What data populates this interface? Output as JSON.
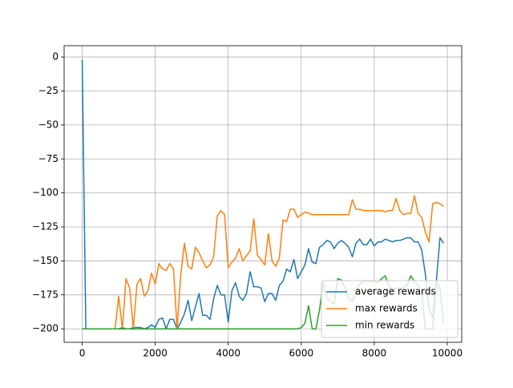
{
  "chart_data": {
    "type": "line",
    "x": [
      0,
      100,
      200,
      300,
      400,
      500,
      600,
      700,
      800,
      900,
      1000,
      1100,
      1200,
      1300,
      1400,
      1500,
      1600,
      1700,
      1800,
      1900,
      2000,
      2100,
      2200,
      2300,
      2400,
      2500,
      2600,
      2700,
      2800,
      2900,
      3000,
      3100,
      3200,
      3300,
      3400,
      3500,
      3600,
      3700,
      3800,
      3900,
      4000,
      4100,
      4200,
      4300,
      4400,
      4500,
      4600,
      4700,
      4800,
      4900,
      5000,
      5100,
      5200,
      5300,
      5400,
      5500,
      5600,
      5700,
      5800,
      5900,
      6000,
      6100,
      6200,
      6300,
      6400,
      6500,
      6600,
      6700,
      6800,
      6900,
      7000,
      7100,
      7200,
      7300,
      7400,
      7500,
      7600,
      7700,
      7800,
      7900,
      8000,
      8100,
      8200,
      8300,
      8400,
      8500,
      8600,
      8700,
      8800,
      8900,
      9000,
      9100,
      9200,
      9300,
      9400,
      9500,
      9600,
      9700,
      9800,
      9900
    ],
    "series": [
      {
        "name": "average rewards",
        "color": "#1f77b4",
        "values": [
          -2,
          -200,
          -200,
          -200,
          -200,
          -200,
          -200,
          -200,
          -200,
          -200,
          -200,
          -199,
          -200,
          -200,
          -199,
          -199,
          -199,
          -200,
          -199,
          -197,
          -199,
          -193,
          -192,
          -200,
          -193,
          -193,
          -200,
          -195,
          -189,
          -179,
          -194,
          -184,
          -174,
          -190,
          -190,
          -193,
          -178,
          -168,
          -175,
          -175,
          -195,
          -172,
          -166,
          -176,
          -179,
          -174,
          -158,
          -169,
          -169,
          -170,
          -180,
          -174,
          -174,
          -179,
          -168,
          -165,
          -156,
          -158,
          -149,
          -163,
          -158,
          -153,
          -141,
          -151,
          -152,
          -140,
          -138,
          -135,
          -136,
          -141,
          -137,
          -135,
          -137,
          -140,
          -147,
          -137,
          -134,
          -138,
          -138,
          -134,
          -139,
          -136,
          -136,
          -134,
          -135,
          -136,
          -135,
          -135,
          -134,
          -133,
          -133,
          -136,
          -136,
          -142,
          -160,
          -185,
          -192,
          -165,
          -133,
          -137
        ]
      },
      {
        "name": "max rewards",
        "color": "#ff7f0e",
        "values": [
          -200,
          -200,
          -200,
          -200,
          -200,
          -200,
          -200,
          -200,
          -200,
          -200,
          -176,
          -200,
          -163,
          -170,
          -200,
          -167,
          -163,
          -176,
          -172,
          -159,
          -167,
          -152,
          -156,
          -157,
          -152,
          -156,
          -200,
          -160,
          -137,
          -154,
          -156,
          -140,
          -144,
          -150,
          -155,
          -153,
          -147,
          -117,
          -113,
          -116,
          -155,
          -151,
          -148,
          -141,
          -150,
          -146,
          -143,
          -119,
          -146,
          -149,
          -153,
          -130,
          -150,
          -154,
          -148,
          -120,
          -121,
          -112,
          -112,
          -118,
          -116,
          -114,
          -115,
          -116,
          -116,
          -116,
          -116,
          -116,
          -116,
          -116,
          -116,
          -116,
          -116,
          -116,
          -105,
          -112,
          -112,
          -113,
          -113,
          -113,
          -113,
          -113,
          -113,
          -114,
          -113,
          -113,
          -104,
          -113,
          -116,
          -115,
          -115,
          -102,
          -115,
          -118,
          -129,
          -136,
          -108,
          -107,
          -108,
          -110
        ]
      },
      {
        "name": "min rewards",
        "color": "#2ca02c",
        "values": [
          -200,
          -200,
          -200,
          -200,
          -200,
          -200,
          -200,
          -200,
          -200,
          -200,
          -200,
          -200,
          -200,
          -200,
          -200,
          -200,
          -200,
          -200,
          -200,
          -200,
          -200,
          -200,
          -200,
          -200,
          -200,
          -200,
          -200,
          -200,
          -200,
          -200,
          -200,
          -200,
          -200,
          -200,
          -200,
          -200,
          -200,
          -200,
          -200,
          -200,
          -200,
          -200,
          -200,
          -200,
          -200,
          -200,
          -200,
          -200,
          -200,
          -200,
          -200,
          -200,
          -200,
          -200,
          -200,
          -200,
          -200,
          -200,
          -200,
          -200,
          -199,
          -196,
          -183,
          -200,
          -200,
          -186,
          -166,
          -178,
          -179,
          -182,
          -163,
          -164,
          -170,
          -178,
          -180,
          -173,
          -167,
          -165,
          -165,
          -165,
          -165,
          -166,
          -163,
          -161,
          -168,
          -172,
          -170,
          -170,
          -170,
          -168,
          -161,
          -165,
          -168,
          -173,
          -200,
          -200,
          -200,
          -166,
          -170,
          -197
        ]
      }
    ],
    "xlim": [
      -495,
      10395
    ],
    "ylim": [
      -209.9,
      8.3
    ],
    "xticks": [
      0,
      2000,
      4000,
      6000,
      8000,
      10000
    ],
    "yticks": [
      0,
      {
        "value": -25,
        "label": "−25"
      },
      {
        "value": -50,
        "label": "−50"
      },
      {
        "value": -75,
        "label": "−75"
      },
      {
        "value": -100,
        "label": "−100"
      },
      {
        "value": -125,
        "label": "−125"
      },
      {
        "value": -150,
        "label": "−150"
      },
      {
        "value": -175,
        "label": "−175"
      },
      {
        "value": -200,
        "label": "−200"
      }
    ],
    "grid": true,
    "legend": "lower right"
  }
}
